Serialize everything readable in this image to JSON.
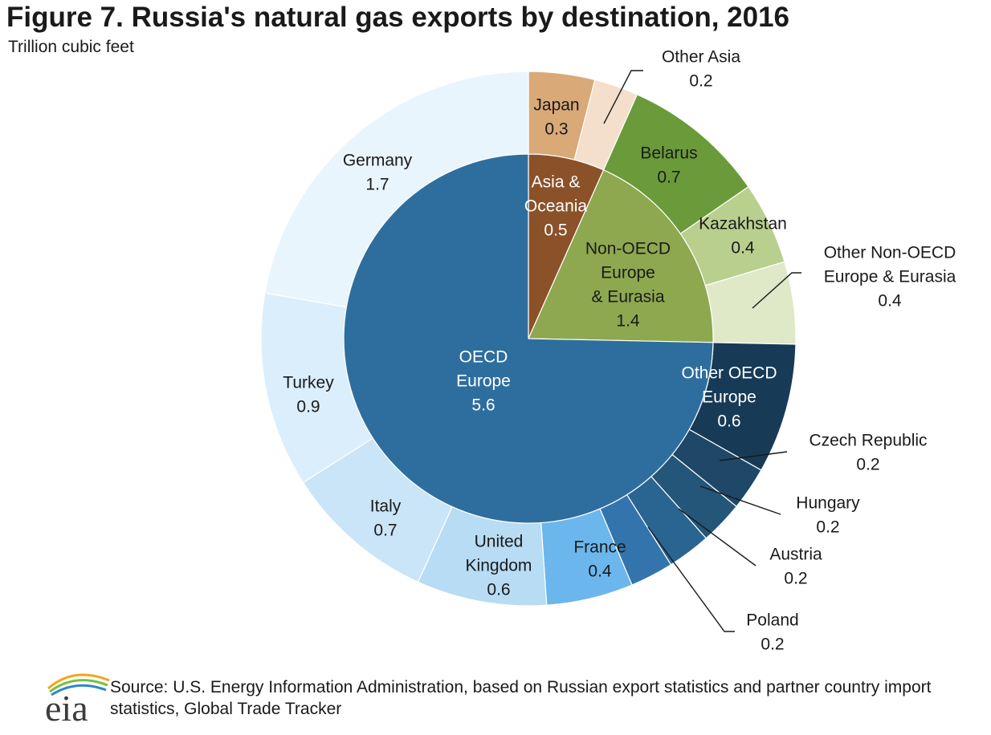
{
  "title": "Figure 7. Russia's natural gas exports by destination, 2016",
  "unit_label": "Trillion cubic feet",
  "source": "Source: U.S. Energy Information Administration, based on Russian export statistics and partner country import statistics, Global Trade Tracker",
  "logo_text": "eia",
  "chart_data": {
    "type": "pie",
    "subtype": "sunburst",
    "unit": "Trillion cubic feet",
    "start_angle_deg": 0,
    "direction": "clockwise",
    "regions": [
      {
        "name": "Asia & Oceania",
        "label_lines": [
          "Asia &",
          "Oceania"
        ],
        "value": 0.5,
        "color": "#8b5129",
        "countries": [
          {
            "name": "Japan",
            "label_lines": [
              "Japan"
            ],
            "value": 0.3,
            "color": "#d9a978"
          },
          {
            "name": "Other Asia",
            "label_lines": [
              "Other Asia"
            ],
            "value": 0.2,
            "color": "#f3dfcb"
          }
        ]
      },
      {
        "name": "Non-OECD Europe & Eurasia",
        "label_lines": [
          "Non-OECD",
          "Europe",
          "& Eurasia"
        ],
        "value": 1.4,
        "color": "#8ea84f",
        "countries": [
          {
            "name": "Belarus",
            "label_lines": [
              "Belarus"
            ],
            "value": 0.7,
            "color": "#6a9a3a"
          },
          {
            "name": "Kazakhstan",
            "label_lines": [
              "Kazakhstan"
            ],
            "value": 0.4,
            "color": "#b9cf8e"
          },
          {
            "name": "Other Non-OECD Europe & Eurasia",
            "label_lines": [
              "Other Non-OECD",
              "Europe & Eurasia"
            ],
            "value": 0.4,
            "color": "#dfe8c7"
          }
        ]
      },
      {
        "name": "OECD Europe",
        "label_lines": [
          "OECD",
          "Europe"
        ],
        "value": 5.6,
        "color": "#2e6e9e",
        "countries": [
          {
            "name": "Other OECD Europe",
            "label_lines": [
              "Other OECD",
              "Europe"
            ],
            "value": 0.6,
            "color": "#173a57"
          },
          {
            "name": "Czech Republic",
            "label_lines": [
              "Czech Republic"
            ],
            "value": 0.2,
            "color": "#1e4768"
          },
          {
            "name": "Hungary",
            "label_lines": [
              "Hungary"
            ],
            "value": 0.2,
            "color": "#245679"
          },
          {
            "name": "Austria",
            "label_lines": [
              "Austria"
            ],
            "value": 0.2,
            "color": "#2a6491"
          },
          {
            "name": "Poland",
            "label_lines": [
              "Poland"
            ],
            "value": 0.2,
            "color": "#3474ad"
          },
          {
            "name": "France",
            "label_lines": [
              "France"
            ],
            "value": 0.4,
            "color": "#6bb6ec"
          },
          {
            "name": "United Kingdom",
            "label_lines": [
              "United",
              "Kingdom"
            ],
            "value": 0.6,
            "color": "#b7dcf4"
          },
          {
            "name": "Italy",
            "label_lines": [
              "Italy"
            ],
            "value": 0.7,
            "color": "#cae5f8"
          },
          {
            "name": "Turkey",
            "label_lines": [
              "Turkey"
            ],
            "value": 0.9,
            "color": "#dbeefb"
          },
          {
            "name": "Germany",
            "label_lines": [
              "Germany"
            ],
            "value": 1.7,
            "color": "#e9f5fd"
          }
        ]
      }
    ]
  }
}
